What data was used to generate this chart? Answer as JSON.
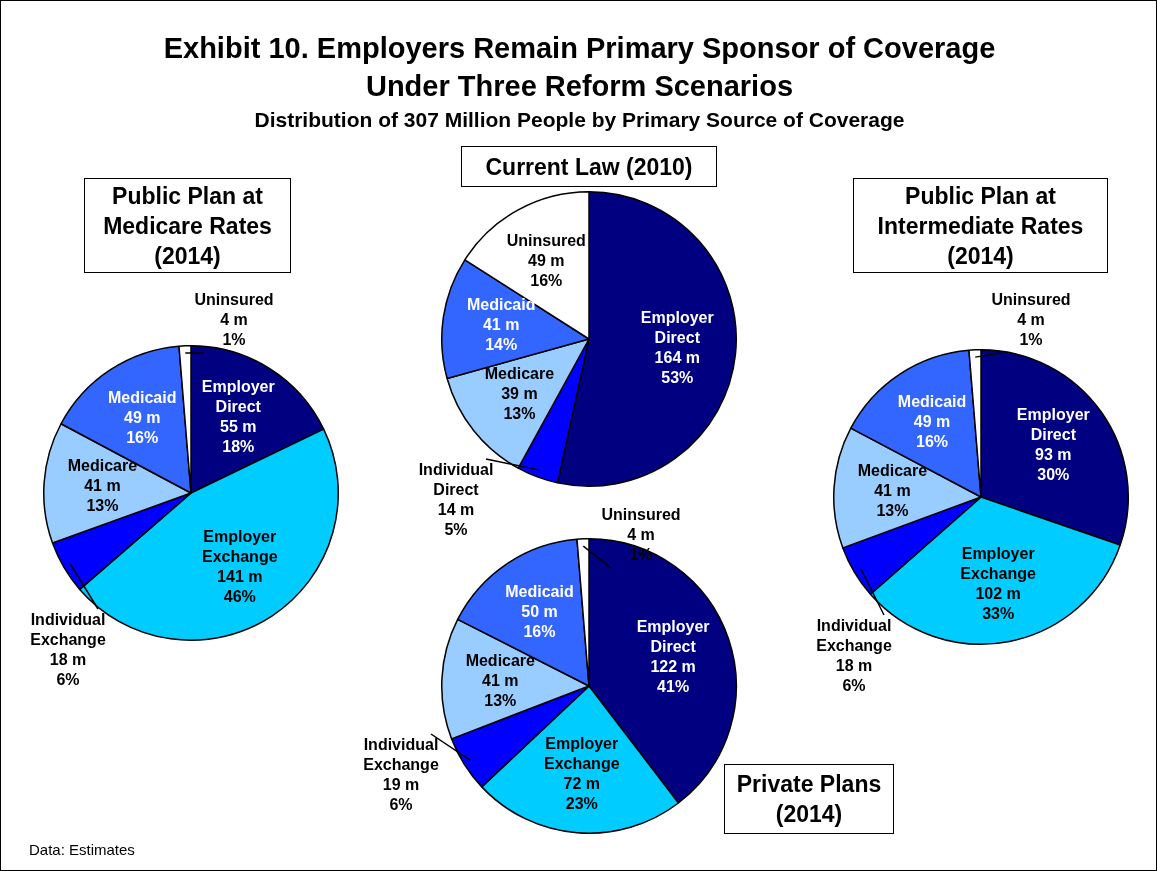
{
  "chart_data": [
    {
      "type": "other",
      "title": "Exhibit 10. Employers Remain Primary Sponsor of Coverage\nUnder Three Reform Scenarios",
      "subtitle": "Distribution of 307 Million People by Primary Source of Coverage",
      "annotations": [
        "Data: Estimates"
      ]
    },
    {
      "type": "pie",
      "title": "Current Law (2010)",
      "categories": [
        "Employer Direct",
        "Individual Direct",
        "Medicare",
        "Medicaid",
        "Uninsured"
      ],
      "values": [
        164,
        14,
        39,
        41,
        49
      ],
      "colors": [
        "#000080",
        "#0000ff",
        "#99ccff",
        "#3366ff",
        "#ffffff"
      ],
      "value_labels": [
        "164 m\n53%",
        "14 m\n5%",
        "39 m\n13%",
        "41 m\n14%",
        "49 m\n16%"
      ]
    },
    {
      "type": "pie",
      "title": "Public Plan at\nMedicare Rates\n(2014)",
      "categories": [
        "Employer Direct",
        "Employer Exchange",
        "Individual Exchange",
        "Medicare",
        "Medicaid",
        "Uninsured"
      ],
      "values": [
        55,
        141,
        18,
        41,
        49,
        4
      ],
      "colors": [
        "#000080",
        "#00ccff",
        "#0000ff",
        "#99ccff",
        "#3366ff",
        "#ffffff"
      ],
      "value_labels": [
        "55 m\n18%",
        "141 m\n46%",
        "18 m\n6%",
        "41 m\n13%",
        "49 m\n16%",
        "4 m\n1%"
      ]
    },
    {
      "type": "pie",
      "title": "Public Plan at\nIntermediate Rates\n(2014)",
      "categories": [
        "Employer Direct",
        "Employer Exchange",
        "Individual Exchange",
        "Medicare",
        "Medicaid",
        "Uninsured"
      ],
      "values": [
        93,
        102,
        18,
        41,
        49,
        4
      ],
      "colors": [
        "#000080",
        "#00ccff",
        "#0000ff",
        "#99ccff",
        "#3366ff",
        "#ffffff"
      ],
      "value_labels": [
        "93 m\n30%",
        "102 m\n33%",
        "18 m\n6%",
        "41 m\n13%",
        "49 m\n16%",
        "4 m\n1%"
      ]
    },
    {
      "type": "pie",
      "title": "Private Plans\n(2014)",
      "categories": [
        "Employer Direct",
        "Employer Exchange",
        "Individual Exchange",
        "Medicare",
        "Medicaid",
        "Uninsured"
      ],
      "values": [
        122,
        72,
        19,
        41,
        50,
        4
      ],
      "colors": [
        "#000080",
        "#00ccff",
        "#0000ff",
        "#99ccff",
        "#3366ff",
        "#ffffff"
      ],
      "value_labels": [
        "122 m\n41%",
        "72 m\n23%",
        "19 m\n6%",
        "41 m\n13%",
        "50 m\n16%",
        "4 m\n1%"
      ]
    }
  ]
}
